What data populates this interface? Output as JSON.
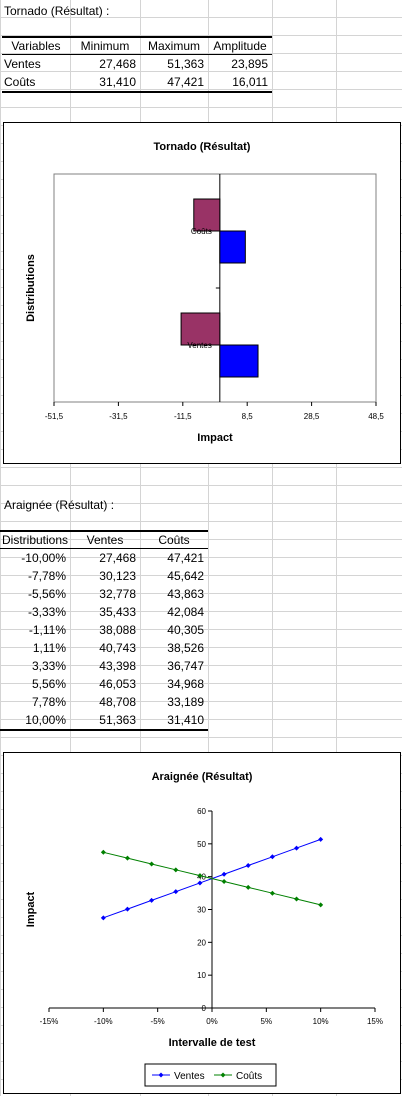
{
  "tornado_table": {
    "title": "Tornado (Résultat) :",
    "headers": [
      "Variables",
      "Minimum",
      "Maximum",
      "Amplitude"
    ],
    "rows": [
      [
        "Ventes",
        "27,468",
        "51,363",
        "23,895"
      ],
      [
        "Coûts",
        "31,410",
        "47,421",
        "16,011"
      ]
    ]
  },
  "spider_table": {
    "title": "Araignée (Résultat) :",
    "headers": [
      "Distributions",
      "Ventes",
      "Coûts"
    ],
    "rows": [
      [
        "-10,00%",
        "27,468",
        "47,421"
      ],
      [
        "-7,78%",
        "30,123",
        "45,642"
      ],
      [
        "-5,56%",
        "32,778",
        "43,863"
      ],
      [
        "-3,33%",
        "35,433",
        "42,084"
      ],
      [
        "-1,11%",
        "38,088",
        "40,305"
      ],
      [
        "1,11%",
        "40,743",
        "38,526"
      ],
      [
        "3,33%",
        "43,398",
        "36,747"
      ],
      [
        "5,56%",
        "46,053",
        "34,968"
      ],
      [
        "7,78%",
        "48,708",
        "33,189"
      ],
      [
        "10,00%",
        "51,363",
        "31,410"
      ]
    ]
  },
  "chart_data": [
    {
      "type": "bar",
      "orientation": "horizontal",
      "title": "Tornado (Résultat)",
      "xlabel": "Impact",
      "ylabel": "Distributions",
      "categories": [
        "Ventes",
        "Coûts"
      ],
      "baseline": 39.5,
      "xlim": [
        -51.5,
        48.5
      ],
      "xticks": [
        "-51,5",
        "-31,5",
        "-11,5",
        "8,5",
        "28,5",
        "48,5"
      ],
      "xtick_values": [
        -51.5,
        -31.5,
        -11.5,
        8.5,
        28.5,
        48.5
      ],
      "series": [
        {
          "color": "#993366",
          "values": [
            27.468,
            31.41
          ]
        },
        {
          "color": "#0000ff",
          "values": [
            51.363,
            47.421
          ]
        }
      ],
      "grid": false
    },
    {
      "type": "line",
      "title": "Araignée (Résultat)",
      "xlabel": "Intervalle de test",
      "ylabel": "Impact",
      "x": [
        -10.0,
        -7.78,
        -5.56,
        -3.33,
        -1.11,
        1.11,
        3.33,
        5.56,
        7.78,
        10.0
      ],
      "xlim": [
        -15,
        15
      ],
      "ylim": [
        0,
        60
      ],
      "xticks": [
        "-15%",
        "-10%",
        "-5%",
        "0%",
        "5%",
        "10%",
        "15%"
      ],
      "xtick_values": [
        -15,
        -10,
        -5,
        0,
        5,
        10,
        15
      ],
      "yticks": [
        "0",
        "10",
        "20",
        "30",
        "40",
        "50",
        "60"
      ],
      "ytick_values": [
        0,
        10,
        20,
        30,
        40,
        50,
        60
      ],
      "series": [
        {
          "name": "Ventes",
          "color": "#0000ff",
          "values": [
            27.468,
            30.123,
            32.778,
            35.433,
            38.088,
            40.743,
            43.398,
            46.053,
            48.708,
            51.363
          ]
        },
        {
          "name": "Coûts",
          "color": "#008000",
          "values": [
            47.421,
            45.642,
            43.863,
            42.084,
            40.305,
            38.526,
            36.747,
            34.968,
            33.189,
            31.41
          ]
        }
      ],
      "legend": "bottom",
      "grid": false
    }
  ]
}
